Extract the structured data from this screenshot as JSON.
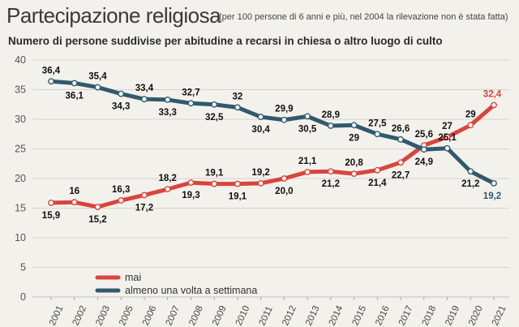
{
  "header": {
    "title": "Partecipazione religiosa",
    "note": "(per 100 persone di 6 anni e più, nel 2004 la rilevazione non è stata fatta)",
    "subtitle": "Numero di persone suddivise per abitudine a recarsi in chiesa o altro luogo di culto"
  },
  "colors": {
    "mai": "#d9443c",
    "settimana": "#2f5a6e",
    "grid": "#c9c9c9",
    "background": "#f3f1ec"
  },
  "chart_data": {
    "type": "line",
    "title": "Partecipazione religiosa",
    "xlabel": "",
    "ylabel": "",
    "ylim": [
      0,
      40
    ],
    "yticks": [
      0,
      5,
      10,
      15,
      20,
      25,
      30,
      35,
      40
    ],
    "grid": true,
    "legend_position": "bottom-left",
    "categories": [
      "2001",
      "2002",
      "2003",
      "2005",
      "2006",
      "2007",
      "2008",
      "2009",
      "2010",
      "2011",
      "2012",
      "2013",
      "2014",
      "2015",
      "2016",
      "2017",
      "2018",
      "2019",
      "2020",
      "2021"
    ],
    "series": [
      {
        "name": "mai",
        "color_key": "mai",
        "values": [
          15.9,
          16,
          15.2,
          16.3,
          17.2,
          18.2,
          19.3,
          19.1,
          19.1,
          19.2,
          20.0,
          21.1,
          21.2,
          20.8,
          21.4,
          22.7,
          25.6,
          27,
          29,
          32.4
        ],
        "labels": [
          "15,9",
          "16",
          "15,2",
          "16,3",
          "17,2",
          "18,2",
          "19,3",
          "19,1",
          "19,1",
          "19,2",
          "20,0",
          "21,1",
          "21,2",
          "20,8",
          "21,4",
          "22,7",
          "25,6",
          "27",
          "29",
          "32,4"
        ],
        "label_pos": [
          "below",
          "above",
          "below",
          "above",
          "below",
          "above",
          "below",
          "above",
          "below",
          "above",
          "below",
          "above",
          "below",
          "above",
          "below",
          "below",
          "above",
          "above",
          "above",
          "above"
        ]
      },
      {
        "name": "almeno una volta a settimana",
        "color_key": "settimana",
        "values": [
          36.4,
          36.1,
          35.4,
          34.3,
          33.4,
          33.3,
          32.7,
          32.5,
          32,
          30.4,
          29.9,
          30.5,
          28.9,
          29,
          27.5,
          26.6,
          24.9,
          25.1,
          21.2,
          19.2
        ],
        "labels": [
          "36,4",
          "36,1",
          "35,4",
          "34,3",
          "33,4",
          "33,3",
          "32,7",
          "32,5",
          "32",
          "30,4",
          "29,9",
          "30,5",
          "28,9",
          "29",
          "27,5",
          "26,6",
          "24,9",
          "25,1",
          "21,2",
          "19,2"
        ],
        "label_pos": [
          "above",
          "below",
          "above",
          "below",
          "above",
          "below",
          "above",
          "below",
          "above",
          "below",
          "above",
          "below",
          "above",
          "below",
          "above",
          "above",
          "below",
          "above",
          "below",
          "below"
        ]
      }
    ]
  }
}
